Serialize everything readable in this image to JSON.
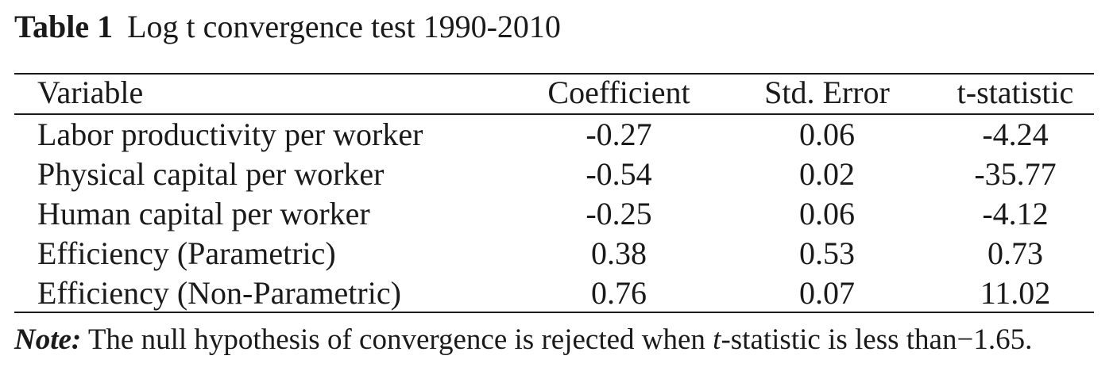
{
  "caption": {
    "label": "Table 1",
    "title": "Log t convergence test 1990-2010"
  },
  "table": {
    "columns": [
      "Variable",
      "Coefficient",
      "Std. Error",
      "t-statistic"
    ],
    "rows": [
      [
        "Labor productivity per worker",
        "-0.27",
        "0.06",
        "-4.24"
      ],
      [
        "Physical capital per worker",
        "-0.54",
        "0.02",
        "-35.77"
      ],
      [
        "Human capital per worker",
        "-0.25",
        "0.06",
        "-4.12"
      ],
      [
        "Efficiency (Parametric)",
        "0.38",
        "0.53",
        "0.73"
      ],
      [
        "Efficiency (Non-Parametric)",
        "0.76",
        "0.07",
        "11.02"
      ]
    ]
  },
  "note": {
    "label": "Note:",
    "text_before": " The null hypothesis of convergence is rejected when ",
    "italic_t": "t",
    "text_after": "-statistic is less than",
    "threshold": "−1.65."
  }
}
